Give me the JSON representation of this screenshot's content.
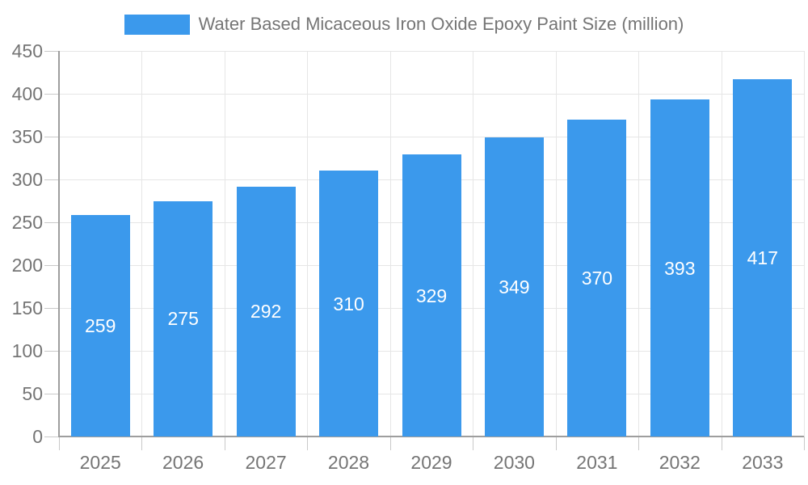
{
  "legend": {
    "label": "Water Based Micaceous Iron Oxide Epoxy Paint Size (million)"
  },
  "chart_data": {
    "type": "bar",
    "title": "Water Based Micaceous Iron Oxide Epoxy Paint Size (million)",
    "categories": [
      "2025",
      "2026",
      "2027",
      "2028",
      "2029",
      "2030",
      "2031",
      "2032",
      "2033"
    ],
    "values": [
      259,
      275,
      292,
      310,
      329,
      349,
      370,
      393,
      417
    ],
    "xlabel": "",
    "ylabel": "",
    "ylim": [
      0,
      450
    ],
    "ytick_step": 50,
    "grid": true,
    "legend_position": "top",
    "value_labels": "inside-center",
    "colors": {
      "bar": "#3B99EC",
      "value_label_text": "#FFFFFF",
      "axis_text": "#757575",
      "axis_line": "#9E9E9E",
      "tick_line": "#C9C9C9",
      "grid_line": "#E6E6E6",
      "background": "#FFFFFF"
    }
  }
}
